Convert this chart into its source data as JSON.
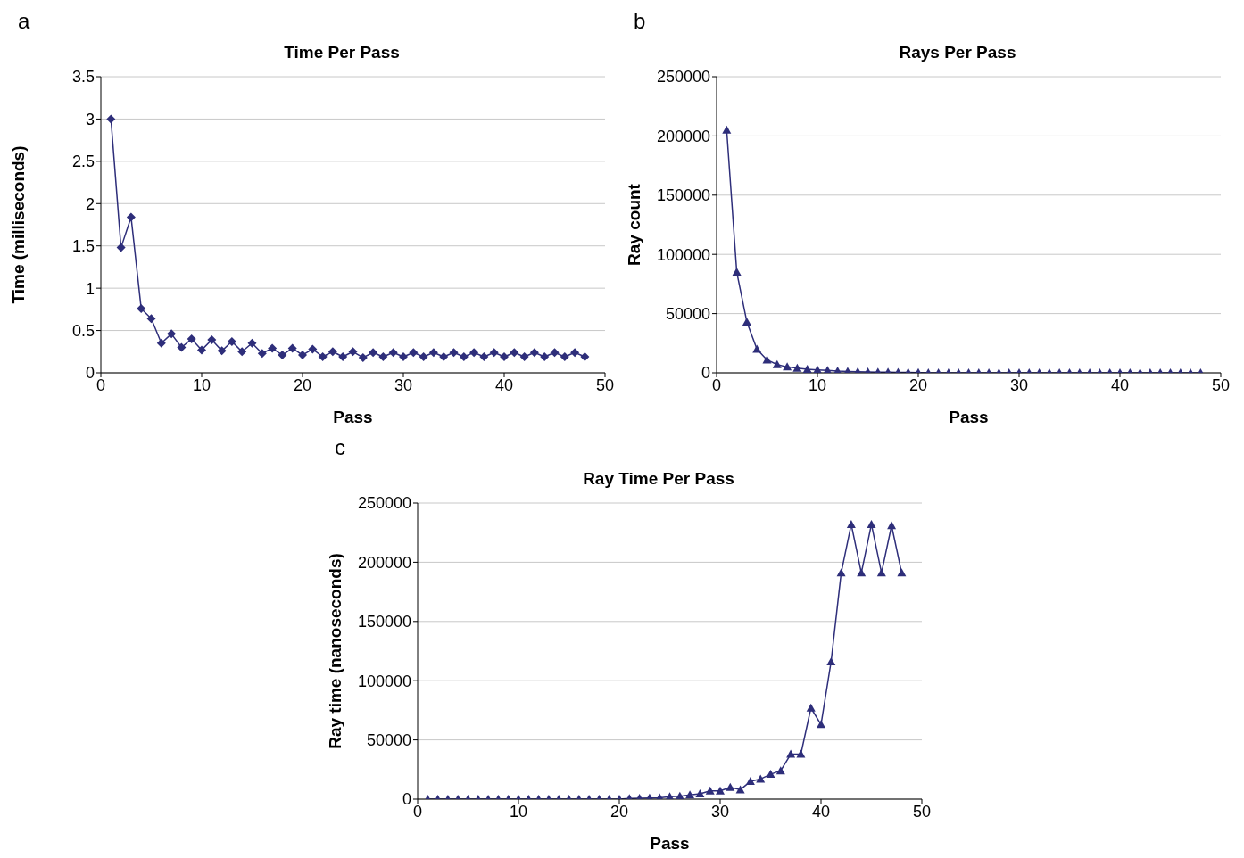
{
  "chart_data": [
    {
      "type": "line",
      "title": "Time Per Pass",
      "xlabel": "Pass",
      "ylabel": "Time (milliseconds)",
      "annotations": [
        "a"
      ],
      "marker": "diamond",
      "grid": "y",
      "x": [
        1,
        2,
        3,
        4,
        5,
        6,
        7,
        8,
        9,
        10,
        11,
        12,
        13,
        14,
        15,
        16,
        17,
        18,
        19,
        20,
        21,
        22,
        23,
        24,
        25,
        26,
        27,
        28,
        29,
        30,
        31,
        32,
        33,
        34,
        35,
        36,
        37,
        38,
        39,
        40,
        41,
        42,
        43,
        44,
        45,
        46,
        47,
        48
      ],
      "series": [
        {
          "color": "#2e2e7a",
          "values": [
            3.0,
            1.48,
            1.84,
            0.76,
            0.64,
            0.35,
            0.46,
            0.3,
            0.4,
            0.27,
            0.39,
            0.26,
            0.37,
            0.25,
            0.35,
            0.23,
            0.29,
            0.21,
            0.29,
            0.21,
            0.28,
            0.19,
            0.25,
            0.19,
            0.25,
            0.18,
            0.24,
            0.19,
            0.24,
            0.19,
            0.24,
            0.19,
            0.24,
            0.19,
            0.24,
            0.19,
            0.24,
            0.19,
            0.24,
            0.19,
            0.24,
            0.19,
            0.24,
            0.19,
            0.24,
            0.19,
            0.24,
            0.19
          ]
        }
      ],
      "xlim": [
        0,
        50
      ],
      "xticks": [
        0,
        10,
        20,
        30,
        40,
        50
      ],
      "ylim": [
        0,
        3.5
      ],
      "yticks": [
        0,
        0.5,
        1,
        1.5,
        2,
        2.5,
        3,
        3.5
      ]
    },
    {
      "type": "line",
      "title": "Rays Per Pass",
      "xlabel": "Pass",
      "ylabel": "Ray count",
      "annotations": [
        "b"
      ],
      "marker": "triangle",
      "grid": "y",
      "x": [
        1,
        2,
        3,
        4,
        5,
        6,
        7,
        8,
        9,
        10,
        11,
        12,
        13,
        14,
        15,
        16,
        17,
        18,
        19,
        20,
        21,
        22,
        23,
        24,
        25,
        26,
        27,
        28,
        29,
        30,
        31,
        32,
        33,
        34,
        35,
        36,
        37,
        38,
        39,
        40,
        41,
        42,
        43,
        44,
        45,
        46,
        47,
        48
      ],
      "series": [
        {
          "color": "#2e2e7a",
          "values": [
            205000,
            85000,
            43000,
            20000,
            11000,
            7000,
            5000,
            4000,
            3000,
            2500,
            2000,
            1500,
            1200,
            1000,
            800,
            600,
            500,
            400,
            300,
            200,
            0,
            0,
            0,
            0,
            0,
            0,
            0,
            0,
            0,
            0,
            0,
            0,
            0,
            0,
            0,
            0,
            0,
            0,
            0,
            0,
            0,
            0,
            0,
            0,
            0,
            0,
            0,
            0
          ]
        }
      ],
      "xlim": [
        0,
        50
      ],
      "xticks": [
        0,
        10,
        20,
        30,
        40,
        50
      ],
      "ylim": [
        0,
        250000
      ],
      "yticks": [
        0,
        50000,
        100000,
        150000,
        200000,
        250000
      ]
    },
    {
      "type": "line",
      "title": "Ray Time Per Pass",
      "xlabel": "Pass",
      "ylabel": "Ray time  (nanoseconds)",
      "annotations": [
        "c"
      ],
      "marker": "triangle",
      "grid": "y",
      "x": [
        1,
        2,
        3,
        4,
        5,
        6,
        7,
        8,
        9,
        10,
        11,
        12,
        13,
        14,
        15,
        16,
        17,
        18,
        19,
        20,
        21,
        22,
        23,
        24,
        25,
        26,
        27,
        28,
        29,
        30,
        31,
        32,
        33,
        34,
        35,
        36,
        37,
        38,
        39,
        40,
        41,
        42,
        43,
        44,
        45,
        46,
        47,
        48
      ],
      "series": [
        {
          "color": "#2e2e7a",
          "values": [
            0,
            0,
            0,
            0,
            0,
            0,
            0,
            0,
            0,
            0,
            0,
            0,
            0,
            0,
            0,
            0,
            0,
            0,
            0,
            0,
            500,
            800,
            1000,
            1200,
            2000,
            2500,
            3500,
            4500,
            7000,
            7000,
            10000,
            8000,
            15000,
            17000,
            21000,
            24000,
            38000,
            38000,
            77000,
            63000,
            116000,
            191000,
            232000,
            191000,
            232000,
            191000,
            231000,
            191000
          ]
        }
      ],
      "xlim": [
        0,
        50
      ],
      "xticks": [
        0,
        10,
        20,
        30,
        40,
        50
      ],
      "ylim": [
        0,
        250000
      ],
      "yticks": [
        0,
        50000,
        100000,
        150000,
        200000,
        250000
      ]
    }
  ]
}
